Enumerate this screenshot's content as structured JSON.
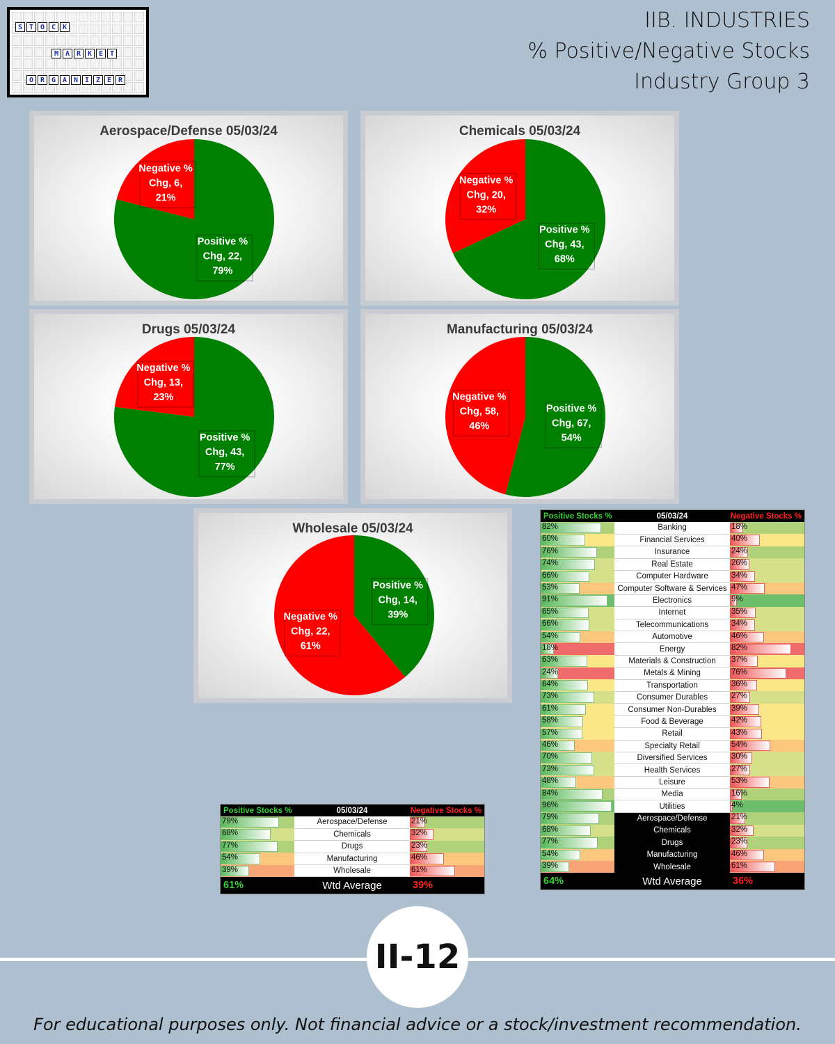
{
  "header": {
    "line1": "IIB. INDUSTRIES",
    "line2": "% Positive/Negative Stocks",
    "line3": "Industry Group 3"
  },
  "logo": {
    "words": [
      "STOCK",
      "MARKET",
      "ORGANIZER"
    ]
  },
  "colors": {
    "positive": "#008000",
    "negative": "#ff0000",
    "background": "#aebfcf"
  },
  "chart_data": [
    {
      "type": "pie",
      "title": "Aerospace/Defense 05/03/24",
      "slices": [
        {
          "label": "Positive % Chg",
          "count": 22,
          "pct": 79
        },
        {
          "label": "Negative % Chg",
          "count": 6,
          "pct": 21
        }
      ]
    },
    {
      "type": "pie",
      "title": "Chemicals 05/03/24",
      "slices": [
        {
          "label": "Positive % Chg",
          "count": 43,
          "pct": 68
        },
        {
          "label": "Negative % Chg",
          "count": 20,
          "pct": 32
        }
      ]
    },
    {
      "type": "pie",
      "title": "Drugs 05/03/24",
      "slices": [
        {
          "label": "Positive % Chg",
          "count": 43,
          "pct": 77
        },
        {
          "label": "Negative % Chg",
          "count": 13,
          "pct": 23
        }
      ]
    },
    {
      "type": "pie",
      "title": "Manufacturing 05/03/24",
      "slices": [
        {
          "label": "Positive % Chg",
          "count": 67,
          "pct": 54
        },
        {
          "label": "Negative % Chg",
          "count": 58,
          "pct": 46
        }
      ]
    },
    {
      "type": "pie",
      "title": "Wholesale 05/03/24",
      "slices": [
        {
          "label": "Positive % Chg",
          "count": 14,
          "pct": 39
        },
        {
          "label": "Negative % Chg",
          "count": 22,
          "pct": 61
        }
      ]
    }
  ],
  "small_table": {
    "headers": {
      "pos": "Positive Stocks %",
      "date": "05/03/24",
      "neg": "Negative Stocks %"
    },
    "rows": [
      {
        "name": "Aerospace/Defense",
        "pos": 79,
        "neg": 21
      },
      {
        "name": "Chemicals",
        "pos": 68,
        "neg": 32
      },
      {
        "name": "Drugs",
        "pos": 77,
        "neg": 23
      },
      {
        "name": "Manufacturing",
        "pos": 54,
        "neg": 46
      },
      {
        "name": "Wholesale",
        "pos": 39,
        "neg": 61
      }
    ],
    "footer": {
      "pos": "61%",
      "label": "Wtd Average",
      "neg": "39%"
    }
  },
  "big_table": {
    "headers": {
      "pos": "Positive Stocks %",
      "date": "05/03/24",
      "neg": "Negative Stocks %"
    },
    "rows": [
      {
        "name": "Banking",
        "pos": 82,
        "neg": 18
      },
      {
        "name": "Financial Services",
        "pos": 60,
        "neg": 40
      },
      {
        "name": "Insurance",
        "pos": 76,
        "neg": 24
      },
      {
        "name": "Real Estate",
        "pos": 74,
        "neg": 26
      },
      {
        "name": "Computer Hardware",
        "pos": 66,
        "neg": 34
      },
      {
        "name": "Computer Software & Services",
        "pos": 53,
        "neg": 47
      },
      {
        "name": "Electronics",
        "pos": 91,
        "neg": 9
      },
      {
        "name": "Internet",
        "pos": 65,
        "neg": 35
      },
      {
        "name": "Telecommunications",
        "pos": 66,
        "neg": 34
      },
      {
        "name": "Automotive",
        "pos": 54,
        "neg": 46
      },
      {
        "name": "Energy",
        "pos": 18,
        "neg": 82
      },
      {
        "name": "Materials & Construction",
        "pos": 63,
        "neg": 37
      },
      {
        "name": "Metals & Mining",
        "pos": 24,
        "neg": 76
      },
      {
        "name": "Transportation",
        "pos": 64,
        "neg": 36
      },
      {
        "name": "Consumer Durables",
        "pos": 73,
        "neg": 27
      },
      {
        "name": "Consumer Non-Durables",
        "pos": 61,
        "neg": 39
      },
      {
        "name": "Food & Beverage",
        "pos": 58,
        "neg": 42
      },
      {
        "name": "Retail",
        "pos": 57,
        "neg": 43
      },
      {
        "name": "Specialty Retail",
        "pos": 46,
        "neg": 54
      },
      {
        "name": "Diversified Services",
        "pos": 70,
        "neg": 30
      },
      {
        "name": "Health Services",
        "pos": 73,
        "neg": 27
      },
      {
        "name": "Leisure",
        "pos": 48,
        "neg": 53
      },
      {
        "name": "Media",
        "pos": 84,
        "neg": 16
      },
      {
        "name": "Utilities",
        "pos": 96,
        "neg": 4
      },
      {
        "name": "Aerospace/Defense",
        "pos": 79,
        "neg": 21,
        "group": true
      },
      {
        "name": "Chemicals",
        "pos": 68,
        "neg": 32,
        "group": true
      },
      {
        "name": "Drugs",
        "pos": 77,
        "neg": 23,
        "group": true
      },
      {
        "name": "Manufacturing",
        "pos": 54,
        "neg": 46,
        "group": true
      },
      {
        "name": "Wholesale",
        "pos": 39,
        "neg": 61,
        "group": true
      }
    ],
    "footer": {
      "pos": "64%",
      "label": "Wtd Average",
      "neg": "36%"
    }
  },
  "page_number": "II-12",
  "disclaimer": "For educational purposes only. Not financial advice or a stock/investment recommendation."
}
